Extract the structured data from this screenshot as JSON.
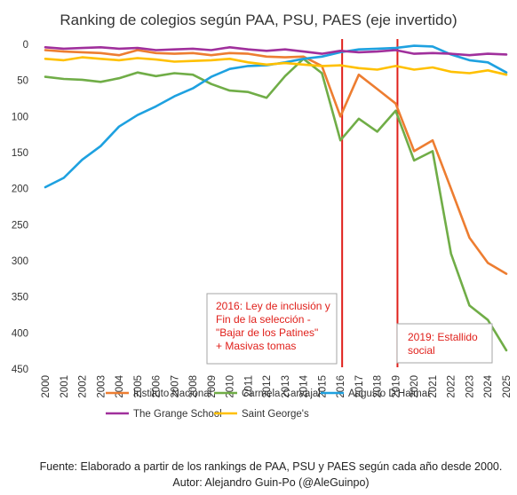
{
  "chart_data": {
    "type": "line",
    "title": "Ranking de colegios según PAA, PSU, PAES (eje invertido)",
    "x": [
      "2000",
      "2001",
      "2002",
      "2003",
      "2004",
      "2005",
      "2006",
      "2007",
      "2008",
      "2009",
      "2010",
      "2011",
      "2012",
      "2013",
      "2014",
      "2015",
      "2016",
      "2017",
      "2018",
      "2019",
      "2020",
      "2021",
      "2022",
      "2023",
      "2024",
      "2025"
    ],
    "yticks": [
      0,
      50,
      100,
      150,
      200,
      250,
      300,
      350,
      400,
      450
    ],
    "ylim": [
      0,
      450
    ],
    "y_inverted": true,
    "grid": false,
    "legend_position": "bottom",
    "series": [
      {
        "name": "Instituto Nacional",
        "color": "#ed7d31",
        "values": [
          8,
          10,
          11,
          12,
          15,
          8,
          12,
          13,
          12,
          15,
          12,
          13,
          17,
          18,
          17,
          30,
          100,
          42,
          62,
          82,
          148,
          133,
          200,
          268,
          303,
          318
        ]
      },
      {
        "name": "Carmela Carvajal",
        "color": "#70ad47",
        "values": [
          45,
          48,
          49,
          52,
          47,
          39,
          44,
          40,
          42,
          55,
          64,
          66,
          74,
          44,
          20,
          40,
          133,
          103,
          121,
          92,
          161,
          148,
          290,
          362,
          382,
          424
        ]
      },
      {
        "name": "Augusto D'Halmar",
        "color": "#1ea1e0",
        "values": [
          198,
          185,
          160,
          141,
          114,
          98,
          86,
          72,
          61,
          45,
          34,
          30,
          29,
          25,
          20,
          17,
          11,
          7,
          6,
          5,
          2,
          3,
          14,
          22,
          25,
          39
        ]
      },
      {
        "name": "The Grange School",
        "color": "#a0309c",
        "values": [
          4,
          6,
          5,
          4,
          6,
          5,
          8,
          7,
          6,
          8,
          4,
          7,
          9,
          7,
          10,
          13,
          9,
          11,
          10,
          8,
          13,
          12,
          13,
          15,
          13,
          14
        ]
      },
      {
        "name": "Saint George's",
        "color": "#ffc000",
        "values": [
          20,
          22,
          18,
          20,
          22,
          19,
          21,
          24,
          23,
          22,
          20,
          25,
          28,
          26,
          28,
          30,
          29,
          33,
          35,
          30,
          35,
          32,
          38,
          40,
          36,
          42
        ]
      }
    ],
    "vlines": [
      {
        "at": "2016",
        "color": "#e0201b"
      },
      {
        "at": "2019",
        "color": "#e0201b"
      }
    ],
    "annotations": [
      {
        "lines": [
          "2016: Ley de inclusión y",
          "Fin de la selección -",
          "\"Bajar de los Patines\"",
          "+ Masivas tomas"
        ]
      },
      {
        "lines": [
          "2019: Estallido",
          "social"
        ]
      }
    ]
  },
  "footer": {
    "line1": "Fuente: Elaborado a partir de los rankings de PAA, PSU y PAES según cada año desde 2000.",
    "line2": "Autor: Alejandro Guin-Po (@AleGuinpo)"
  }
}
